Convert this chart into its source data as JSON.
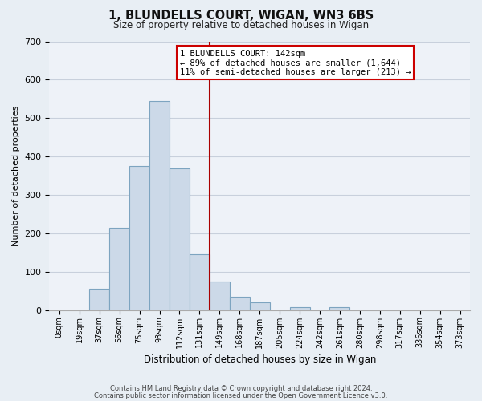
{
  "title": "1, BLUNDELLS COURT, WIGAN, WN3 6BS",
  "subtitle": "Size of property relative to detached houses in Wigan",
  "xlabel": "Distribution of detached houses by size in Wigan",
  "ylabel": "Number of detached properties",
  "bar_labels": [
    "0sqm",
    "19sqm",
    "37sqm",
    "56sqm",
    "75sqm",
    "93sqm",
    "112sqm",
    "131sqm",
    "149sqm",
    "168sqm",
    "187sqm",
    "205sqm",
    "224sqm",
    "242sqm",
    "261sqm",
    "280sqm",
    "298sqm",
    "317sqm",
    "336sqm",
    "354sqm",
    "373sqm"
  ],
  "bar_heights": [
    0,
    0,
    55,
    215,
    375,
    545,
    370,
    145,
    75,
    35,
    20,
    0,
    8,
    0,
    8,
    0,
    0,
    0,
    0,
    0,
    0
  ],
  "bar_color": "#ccd9e8",
  "bar_edge_color": "#7da4c0",
  "vline_color": "#aa0000",
  "annotation_title": "1 BLUNDELLS COURT: 142sqm",
  "annotation_line1": "← 89% of detached houses are smaller (1,644)",
  "annotation_line2": "11% of semi-detached houses are larger (213) →",
  "annotation_box_color": "#ffffff",
  "annotation_box_edge": "#cc0000",
  "ylim": [
    0,
    700
  ],
  "yticks": [
    0,
    100,
    200,
    300,
    400,
    500,
    600,
    700
  ],
  "footer1": "Contains HM Land Registry data © Crown copyright and database right 2024.",
  "footer2": "Contains public sector information licensed under the Open Government Licence v3.0.",
  "bg_color": "#e8eef4",
  "plot_bg_color": "#eef2f8",
  "grid_color": "#c8d0dc"
}
